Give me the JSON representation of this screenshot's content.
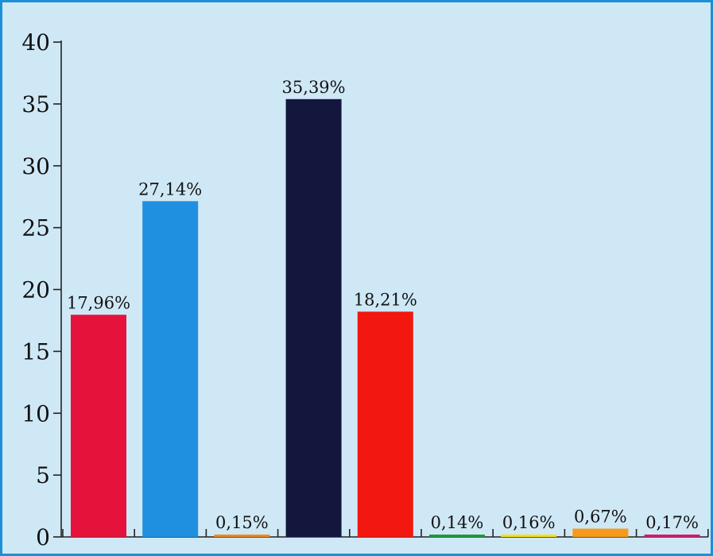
{
  "chart_data": {
    "type": "bar",
    "title": "",
    "xlabel": "",
    "ylabel": "",
    "ylim": [
      0,
      40
    ],
    "y_ticks": [
      "0",
      "5",
      "10",
      "15",
      "20",
      "25",
      "30",
      "35",
      "40"
    ],
    "y_tick_values": [
      0,
      5,
      10,
      15,
      20,
      25,
      30,
      35,
      40
    ],
    "grid": false,
    "legend": "none",
    "bars": [
      {
        "value": 17.96,
        "label": "17,96%",
        "color": "#e5123c"
      },
      {
        "value": 27.14,
        "label": "27,14%",
        "color": "#1f8fe0"
      },
      {
        "value": 0.15,
        "label": "0,15%",
        "color": "#f08a1c"
      },
      {
        "value": 35.39,
        "label": "35,39%",
        "color": "#13163d"
      },
      {
        "value": 18.21,
        "label": "18,21%",
        "color": "#f2170f"
      },
      {
        "value": 0.14,
        "label": "0,14%",
        "color": "#1f9a3a"
      },
      {
        "value": 0.16,
        "label": "0,16%",
        "color": "#f2e21b"
      },
      {
        "value": 0.67,
        "label": "0,67%",
        "color": "#f59a1c"
      },
      {
        "value": 0.17,
        "label": "0,17%",
        "color": "#d41a6a"
      }
    ]
  }
}
